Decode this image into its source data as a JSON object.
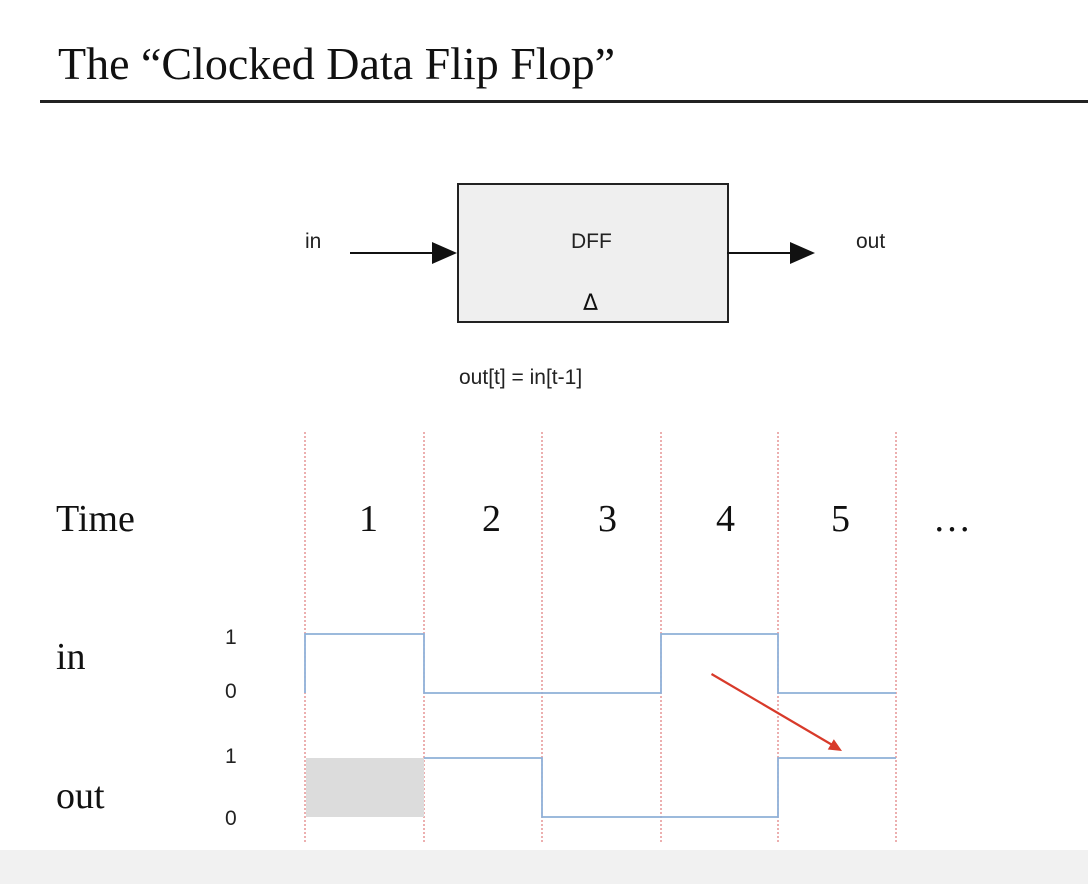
{
  "title": "The “Clocked Data Flip Flop”",
  "block": {
    "name": "DFF",
    "input_label": "in",
    "output_label": "out",
    "clock_symbol": "Δ",
    "equation": "out[t] = in[t-1]"
  },
  "timing": {
    "time_label": "Time",
    "time_steps": [
      "1",
      "2",
      "3",
      "4",
      "5"
    ],
    "ellipsis": "…",
    "signals": [
      {
        "name": "in",
        "level_high": "1",
        "level_low": "0",
        "values": [
          1,
          0,
          0,
          1,
          0
        ]
      },
      {
        "name": "out",
        "level_high": "1",
        "level_low": "0",
        "values": [
          null,
          1,
          0,
          0,
          1
        ]
      }
    ],
    "colors": {
      "waveform": "#8fb0d8",
      "clock_edge": "#e07a7a",
      "arrow": "#d83a2a",
      "unknown_fill": "#dcdcdc"
    },
    "annotation": {
      "from": {
        "signal": "in",
        "step": 4
      },
      "to": {
        "signal": "out",
        "step": 5
      }
    }
  }
}
